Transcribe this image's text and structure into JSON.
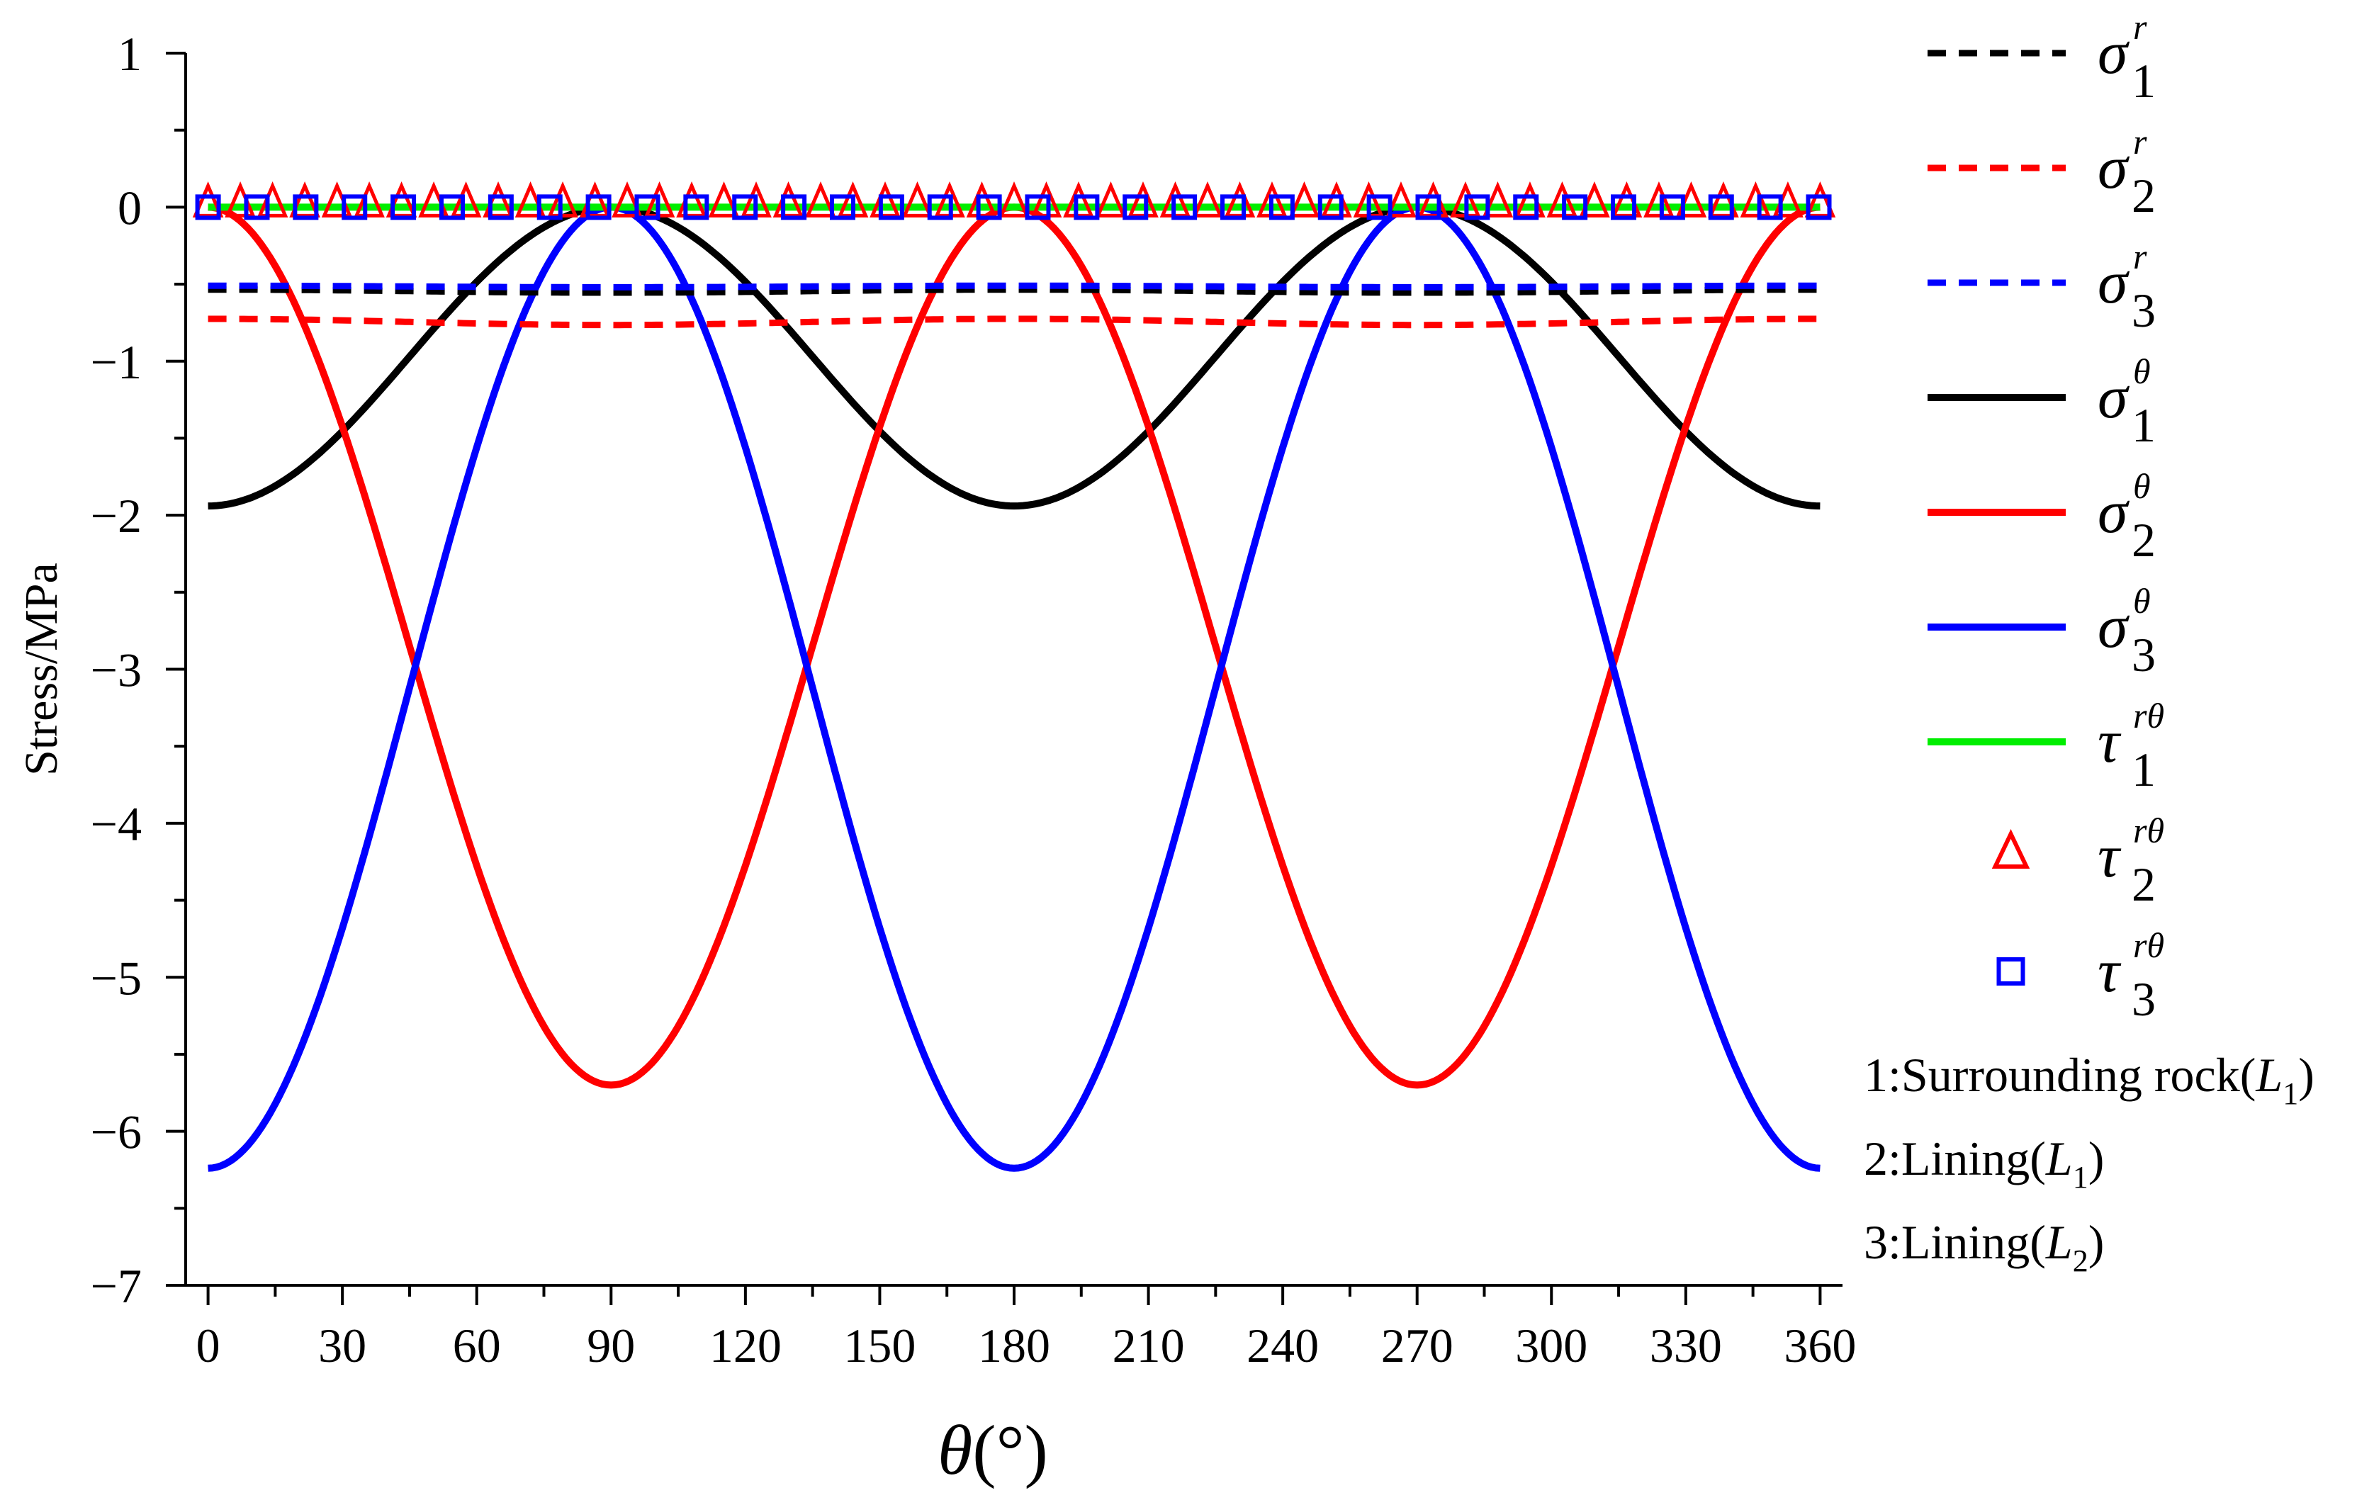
{
  "chart_data": {
    "type": "line",
    "xlabel": "θ(°)",
    "ylabel": "Stress/MPa",
    "xlim": [
      -5,
      365
    ],
    "ylim": [
      -7,
      1
    ],
    "xticks": [
      0,
      30,
      60,
      90,
      120,
      150,
      180,
      210,
      240,
      270,
      300,
      330,
      360
    ],
    "yticks": [
      1,
      0,
      -1,
      -2,
      -3,
      -4,
      -5,
      -6,
      -7
    ],
    "x_minor_step": 15,
    "y_minor_step": 0.5,
    "grid": false,
    "legend_position": "right-outside",
    "series": [
      {
        "name": "σ1r",
        "symbol": "σ",
        "sup": "r",
        "sub": "1",
        "style": "dashed",
        "color": "#000000",
        "formula": {
          "kind": "cos2",
          "a": -0.545,
          "b": 0.01
        }
      },
      {
        "name": "σ2r",
        "symbol": "σ",
        "sup": "r",
        "sub": "2",
        "style": "dashed",
        "color": "#ff0000",
        "formula": {
          "kind": "cos2",
          "a": -0.745,
          "b": 0.02
        }
      },
      {
        "name": "σ3r",
        "symbol": "σ",
        "sup": "r",
        "sub": "3",
        "style": "dashed",
        "color": "#0000ff",
        "formula": {
          "kind": "cos2",
          "a": -0.515,
          "b": 0.005
        }
      },
      {
        "name": "σ1θ",
        "symbol": "σ",
        "sup": "θ",
        "sub": "1",
        "style": "solid",
        "color": "#000000",
        "formula": {
          "kind": "cos2",
          "a": -0.97,
          "b": -0.97
        }
      },
      {
        "name": "σ2θ",
        "symbol": "σ",
        "sup": "θ",
        "sub": "2",
        "style": "solid",
        "color": "#ff0000",
        "formula": {
          "kind": "cos2",
          "a": -2.85,
          "b": 2.85
        }
      },
      {
        "name": "σ3θ",
        "symbol": "σ",
        "sup": "θ",
        "sub": "3",
        "style": "solid",
        "color": "#0000ff",
        "formula": {
          "kind": "cos2",
          "a": -3.12,
          "b": -3.12
        }
      },
      {
        "name": "τ1rθ",
        "symbol": "τ",
        "sup": "rθ",
        "sub": "1",
        "style": "solid",
        "color": "#00ee00",
        "formula": {
          "kind": "cos2",
          "a": 0,
          "b": 0
        }
      },
      {
        "name": "τ2rθ",
        "symbol": "τ",
        "sup": "rθ",
        "sub": "2",
        "style": "triangle",
        "color": "#ff0000",
        "marker_step": 7.2,
        "value": 0
      },
      {
        "name": "τ3rθ",
        "symbol": "τ",
        "sup": "rθ",
        "sub": "3",
        "style": "square",
        "color": "#0000ff",
        "marker_step": 10.9,
        "value": 0
      }
    ],
    "notes": [
      {
        "prefix": "1:Surrounding rock(",
        "var": "L",
        "sub": "1",
        "suffix": ")"
      },
      {
        "prefix": "2:Lining(",
        "var": "L",
        "sub": "1",
        "suffix": ")"
      },
      {
        "prefix": "3:Lining(",
        "var": "L",
        "sub": "2",
        "suffix": ")"
      }
    ]
  }
}
